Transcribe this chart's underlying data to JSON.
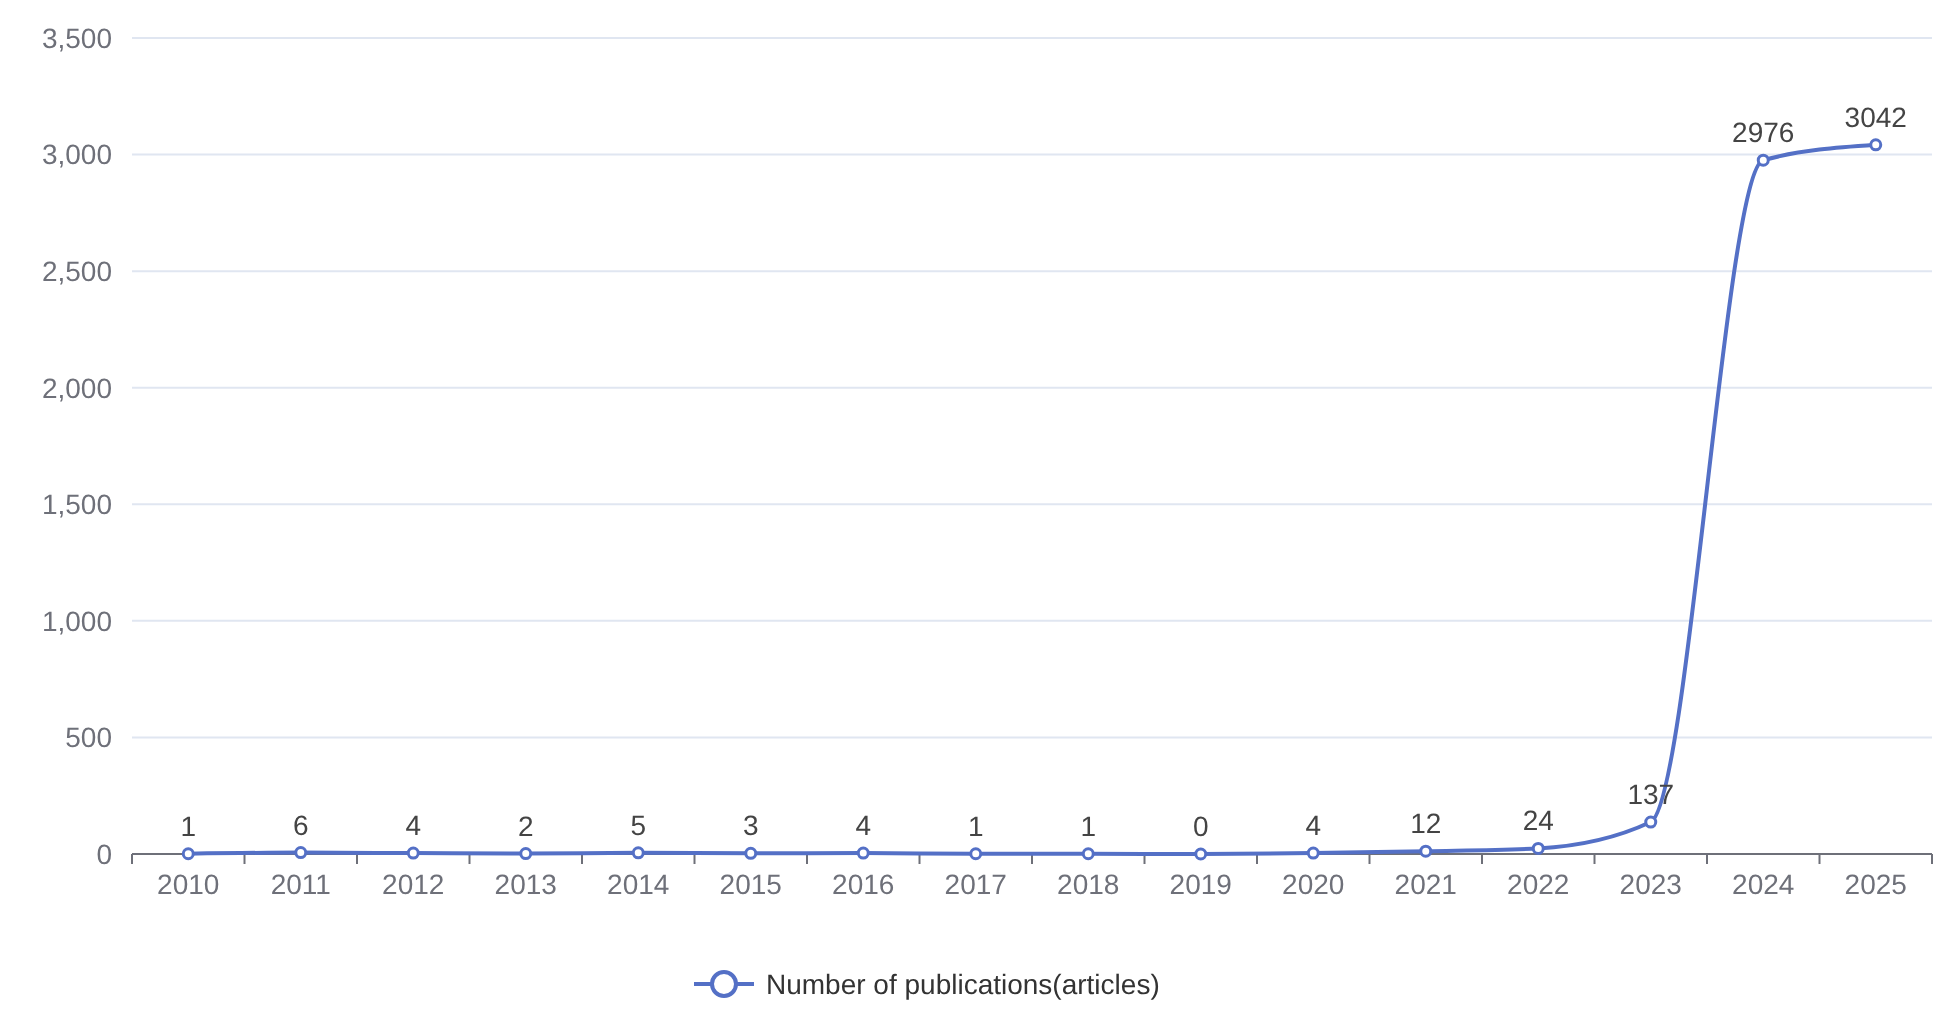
{
  "chart_data": {
    "type": "line",
    "categories": [
      "2010",
      "2011",
      "2012",
      "2013",
      "2014",
      "2015",
      "2016",
      "2017",
      "2018",
      "2019",
      "2020",
      "2021",
      "2022",
      "2023",
      "2024",
      "2025"
    ],
    "series": [
      {
        "name": "Number of publications(articles)",
        "color": "#5470c6",
        "values": [
          1,
          6,
          4,
          2,
          5,
          3,
          4,
          1,
          1,
          0,
          4,
          12,
          24,
          137,
          2976,
          3042
        ]
      }
    ],
    "ylim": [
      0,
      3500
    ],
    "yticks": [
      {
        "value": 0,
        "label": "0"
      },
      {
        "value": 500,
        "label": "500"
      },
      {
        "value": 1000,
        "label": "1,000"
      },
      {
        "value": 1500,
        "label": "1,500"
      },
      {
        "value": 2000,
        "label": "2,000"
      },
      {
        "value": 2500,
        "label": "2,500"
      },
      {
        "value": 3000,
        "label": "3,000"
      },
      {
        "value": 3500,
        "label": "3,500"
      }
    ],
    "grid": "y",
    "legend": "bottom",
    "marker": "circle",
    "line_style": "solid",
    "data_labels": true
  }
}
